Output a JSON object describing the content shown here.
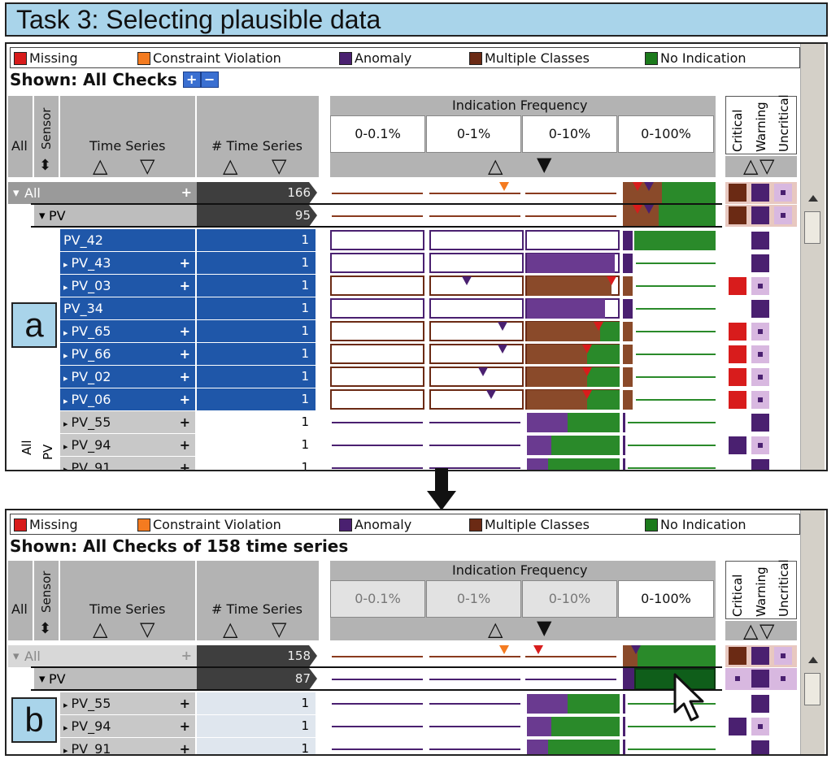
{
  "title": "Task 3: Selecting plausible data",
  "legend": [
    {
      "label": "Missing",
      "color": "#d81c1c"
    },
    {
      "label": "Constraint Violation",
      "color": "#f47b20"
    },
    {
      "label": "Anomaly",
      "color": "#4a2070"
    },
    {
      "label": "Multiple Classes",
      "color": "#6b2a14"
    },
    {
      "label": "No Indication",
      "color": "#1c7a1c"
    }
  ],
  "headers": {
    "all": "All",
    "sensor": "Sensor",
    "time_series": "Time Series",
    "num_time_series": "# Time Series",
    "indication_frequency": "Indication Frequency",
    "freq_cols": [
      "0-0.1%",
      "0-1%",
      "0-10%",
      "0-100%"
    ],
    "critical": "Critical",
    "warning": "Warning",
    "uncritical": "Uncritical",
    "sort_up": "△",
    "sort_down": "▽",
    "sort_up_filled": "▲",
    "sort_down_filled": "▼"
  },
  "panel_a": {
    "shown": "Shown: All Checks",
    "tag": "a",
    "groups": [
      {
        "name": "All",
        "count": "166"
      },
      {
        "name": "PV",
        "count": "95"
      }
    ],
    "rows": [
      {
        "name": "PV_42",
        "count": "1",
        "expand": false,
        "selected": true
      },
      {
        "name": "PV_43",
        "count": "1",
        "expand": true,
        "selected": true
      },
      {
        "name": "PV_03",
        "count": "1",
        "expand": true,
        "selected": true
      },
      {
        "name": "PV_34",
        "count": "1",
        "expand": false,
        "selected": true
      },
      {
        "name": "PV_65",
        "count": "1",
        "expand": true,
        "selected": true
      },
      {
        "name": "PV_66",
        "count": "1",
        "expand": true,
        "selected": true
      },
      {
        "name": "PV_02",
        "count": "1",
        "expand": true,
        "selected": true
      },
      {
        "name": "PV_06",
        "count": "1",
        "expand": true,
        "selected": true
      },
      {
        "name": "PV_55",
        "count": "1",
        "expand": true,
        "selected": false
      },
      {
        "name": "PV_94",
        "count": "1",
        "expand": true,
        "selected": false
      },
      {
        "name": "PV_91",
        "count": "1",
        "expand": true,
        "selected": false
      }
    ],
    "side_labels": {
      "all": "All",
      "pv": "PV"
    }
  },
  "panel_b": {
    "shown": "Shown: All Checks of 158 time series",
    "tag": "b",
    "groups": [
      {
        "name": "All",
        "count": "158"
      },
      {
        "name": "PV",
        "count": "87"
      }
    ],
    "rows": [
      {
        "name": "PV_55",
        "count": "1",
        "expand": true
      },
      {
        "name": "PV_94",
        "count": "1",
        "expand": true
      },
      {
        "name": "PV_91",
        "count": "1",
        "expand": true
      }
    ]
  }
}
